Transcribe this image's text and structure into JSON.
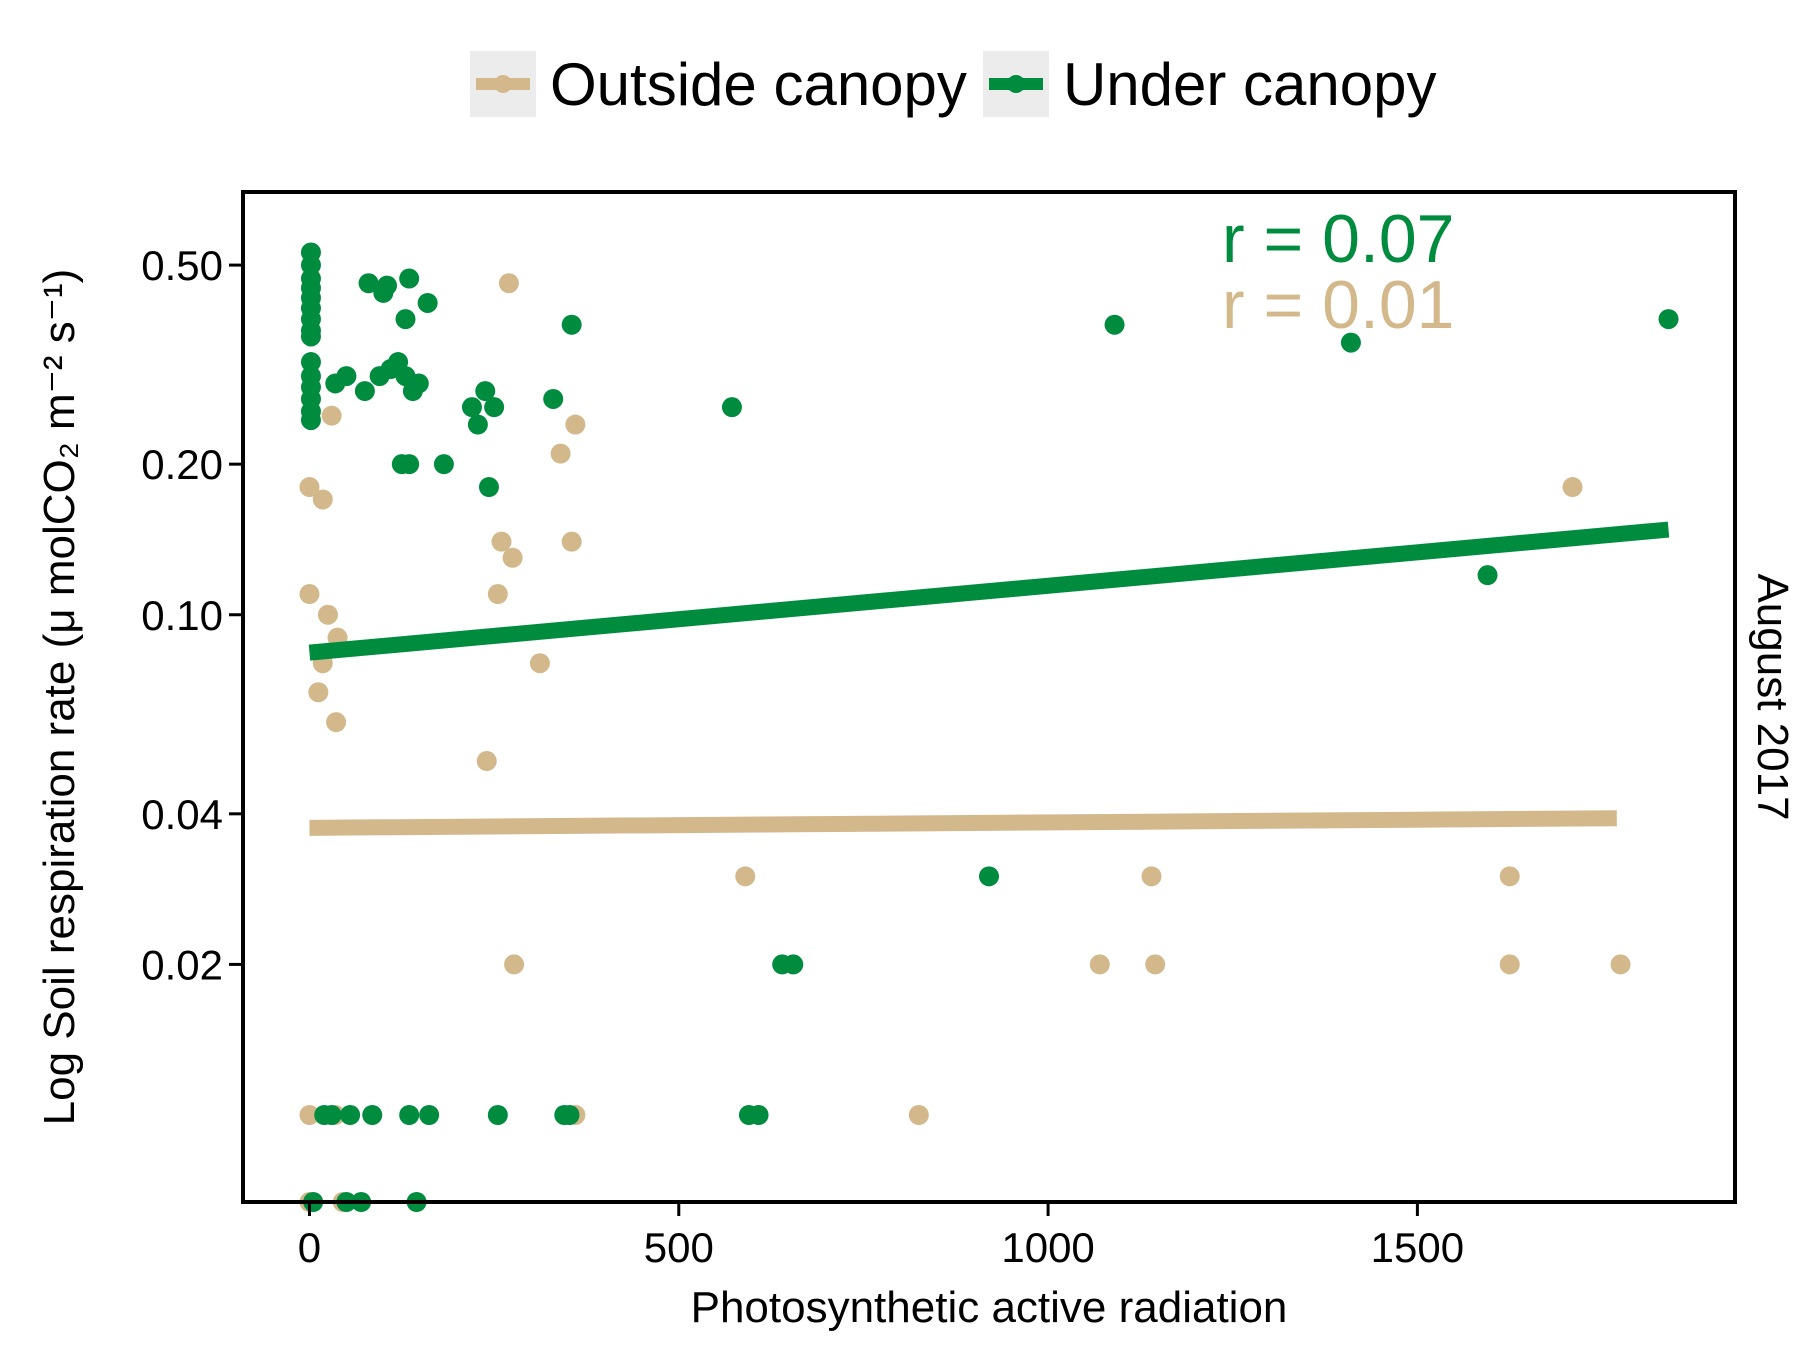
{
  "chart_data": {
    "type": "scatter",
    "xlabel": "Photosynthetic active radiation",
    "ylabel_main": "Log Soil respiration rate",
    "ylabel_unit": "(μ molCO₂ m⁻² s⁻¹)",
    "strip_label": "August 2017",
    "x_scale": "linear",
    "y_scale": "log",
    "xlim": [
      -90,
      1930
    ],
    "ylim": [
      0.0067,
      0.7
    ],
    "x_ticks": [
      0,
      500,
      1000,
      1500
    ],
    "y_ticks": [
      0.5,
      0.2,
      0.1,
      0.04,
      0.02
    ],
    "y_tick_labels": [
      "0.50",
      "0.20",
      "0.10",
      "0.04",
      "0.02"
    ],
    "grid": false,
    "legend_position": "top",
    "annotations": [
      {
        "text": "r = 0.07",
        "color": "#008c3f",
        "series": "Under canopy"
      },
      {
        "text": "r = 0.01",
        "color": "#d3b88c",
        "series": "Outside canopy"
      }
    ],
    "series": [
      {
        "name": "Outside canopy",
        "color": "#d3b88c",
        "trend": {
          "x": [
            0,
            1770
          ],
          "y": [
            0.0375,
            0.0392
          ]
        },
        "points": [
          [
            0,
            0.18
          ],
          [
            18,
            0.17
          ],
          [
            270,
            0.46
          ],
          [
            30,
            0.25
          ],
          [
            340,
            0.21
          ],
          [
            360,
            0.24
          ],
          [
            0,
            0.11
          ],
          [
            25,
            0.1
          ],
          [
            38,
            0.09
          ],
          [
            18,
            0.08
          ],
          [
            12,
            0.07
          ],
          [
            36,
            0.061
          ],
          [
            260,
            0.14
          ],
          [
            255,
            0.11
          ],
          [
            275,
            0.13
          ],
          [
            355,
            0.14
          ],
          [
            312,
            0.08
          ],
          [
            240,
            0.051
          ],
          [
            590,
            0.03
          ],
          [
            1140,
            0.03
          ],
          [
            1625,
            0.03
          ],
          [
            1710,
            0.18
          ],
          [
            277,
            0.02
          ],
          [
            1070,
            0.02
          ],
          [
            1145,
            0.02
          ],
          [
            1625,
            0.02
          ],
          [
            1775,
            0.02
          ],
          [
            0,
            0.01
          ],
          [
            35,
            0.01
          ],
          [
            360,
            0.01
          ],
          [
            825,
            0.01
          ],
          [
            0,
            0.0067
          ],
          [
            45,
            0.0067
          ]
        ]
      },
      {
        "name": "Under canopy",
        "color": "#008c3f",
        "trend": {
          "x": [
            0,
            1840
          ],
          "y": [
            0.084,
            0.148
          ]
        },
        "points": [
          [
            2,
            0.53
          ],
          [
            2,
            0.5
          ],
          [
            2,
            0.47
          ],
          [
            2,
            0.45
          ],
          [
            2,
            0.43
          ],
          [
            2,
            0.41
          ],
          [
            2,
            0.39
          ],
          [
            2,
            0.37
          ],
          [
            2,
            0.36
          ],
          [
            2,
            0.32
          ],
          [
            2,
            0.3
          ],
          [
            2,
            0.285
          ],
          [
            2,
            0.27
          ],
          [
            2,
            0.255
          ],
          [
            2,
            0.245
          ],
          [
            80,
            0.46
          ],
          [
            100,
            0.44
          ],
          [
            105,
            0.455
          ],
          [
            135,
            0.47
          ],
          [
            160,
            0.42
          ],
          [
            130,
            0.39
          ],
          [
            355,
            0.38
          ],
          [
            35,
            0.29
          ],
          [
            50,
            0.3
          ],
          [
            75,
            0.28
          ],
          [
            95,
            0.3
          ],
          [
            110,
            0.31
          ],
          [
            120,
            0.32
          ],
          [
            130,
            0.3
          ],
          [
            140,
            0.28
          ],
          [
            148,
            0.29
          ],
          [
            220,
            0.26
          ],
          [
            238,
            0.28
          ],
          [
            250,
            0.26
          ],
          [
            228,
            0.24
          ],
          [
            330,
            0.27
          ],
          [
            572,
            0.26
          ],
          [
            125,
            0.2
          ],
          [
            135,
            0.2
          ],
          [
            182,
            0.2
          ],
          [
            243,
            0.18
          ],
          [
            1090,
            0.38
          ],
          [
            1410,
            0.35
          ],
          [
            1840,
            0.39
          ],
          [
            1595,
            0.12
          ],
          [
            920,
            0.03
          ],
          [
            640,
            0.02
          ],
          [
            655,
            0.02
          ],
          [
            20,
            0.01
          ],
          [
            30,
            0.01
          ],
          [
            55,
            0.01
          ],
          [
            85,
            0.01
          ],
          [
            135,
            0.01
          ],
          [
            162,
            0.01
          ],
          [
            255,
            0.01
          ],
          [
            345,
            0.01
          ],
          [
            352,
            0.01
          ],
          [
            595,
            0.01
          ],
          [
            608,
            0.01
          ],
          [
            5,
            0.0067
          ],
          [
            50,
            0.0067
          ],
          [
            70,
            0.0067
          ],
          [
            145,
            0.0067
          ]
        ]
      }
    ]
  }
}
